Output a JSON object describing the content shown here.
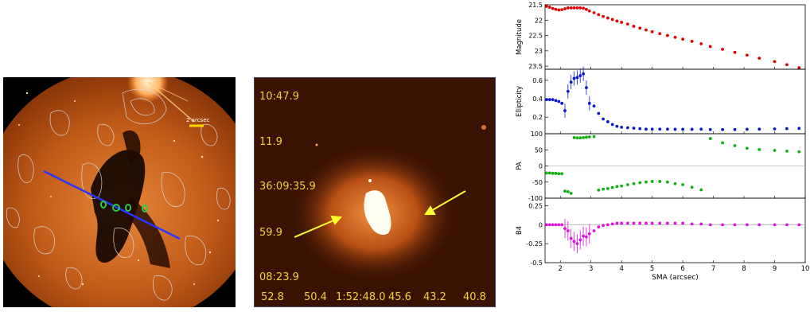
{
  "left_image": {
    "scale_label": "2 arcsec",
    "colors": {
      "contour": "#d8d8d8",
      "axis_line": "#2a36ff",
      "aperture": "#2ecc40",
      "scale_bar": "#ffd400"
    }
  },
  "mid_image": {
    "dec_labels": [
      "10:47.9",
      "11.9",
      "36:09:35.9",
      "59.9",
      "08:23.9"
    ],
    "ra_labels": [
      "52.8",
      "50.4",
      "1:52:48.0",
      "45.6",
      "43.2",
      "40.8"
    ],
    "colors": {
      "label": "#f0d23a",
      "arrow": "#ffff30"
    }
  },
  "chart_data": [
    {
      "type": "scatter",
      "ylabel": "Magnitude",
      "ylim": [
        23.6,
        21.5
      ],
      "yticks": [
        "21.5",
        "22",
        "22.5",
        "23",
        "23.5"
      ],
      "color": "#e00000",
      "x": [
        1.55,
        1.65,
        1.75,
        1.85,
        1.95,
        2.05,
        2.15,
        2.25,
        2.35,
        2.45,
        2.55,
        2.65,
        2.75,
        2.85,
        2.95,
        3.1,
        3.25,
        3.4,
        3.55,
        3.7,
        3.85,
        4.0,
        4.2,
        4.4,
        4.6,
        4.8,
        5.0,
        5.25,
        5.5,
        5.75,
        6.0,
        6.3,
        6.6,
        6.9,
        7.3,
        7.7,
        8.1,
        8.5,
        9.0,
        9.4,
        9.8
      ],
      "y": [
        21.55,
        21.58,
        21.62,
        21.65,
        21.67,
        21.66,
        21.63,
        21.6,
        21.6,
        21.6,
        21.6,
        21.6,
        21.61,
        21.65,
        21.7,
        21.76,
        21.82,
        21.88,
        21.93,
        21.98,
        22.03,
        22.07,
        22.13,
        22.2,
        22.26,
        22.32,
        22.38,
        22.44,
        22.5,
        22.56,
        22.62,
        22.69,
        22.77,
        22.86,
        22.95,
        23.05,
        23.14,
        23.24,
        23.35,
        23.45,
        23.55
      ]
    },
    {
      "type": "scatter",
      "ylabel": "Ellipticity",
      "ylim": [
        0.02,
        0.72
      ],
      "yticks": [
        "0.6",
        "0.4",
        "0.2"
      ],
      "color": "#0a18d0",
      "x": [
        1.55,
        1.65,
        1.75,
        1.85,
        1.95,
        2.05,
        2.15,
        2.25,
        2.35,
        2.45,
        2.55,
        2.65,
        2.75,
        2.85,
        2.95,
        3.1,
        3.25,
        3.4,
        3.55,
        3.7,
        3.85,
        4.0,
        4.2,
        4.4,
        4.6,
        4.8,
        5.0,
        5.25,
        5.5,
        5.75,
        6.0,
        6.3,
        6.6,
        6.9,
        7.3,
        7.7,
        8.1,
        8.5,
        9.0,
        9.4,
        9.8
      ],
      "y": [
        0.39,
        0.39,
        0.39,
        0.38,
        0.37,
        0.35,
        0.27,
        0.48,
        0.58,
        0.62,
        0.63,
        0.65,
        0.67,
        0.52,
        0.35,
        0.32,
        0.24,
        0.18,
        0.15,
        0.12,
        0.1,
        0.09,
        0.085,
        0.08,
        0.075,
        0.07,
        0.07,
        0.07,
        0.07,
        0.068,
        0.068,
        0.068,
        0.07,
        0.065,
        0.065,
        0.065,
        0.068,
        0.07,
        0.072,
        0.075,
        0.078
      ]
    },
    {
      "type": "scatter",
      "ylabel": "PA",
      "ylim": [
        -100,
        100
      ],
      "yticks": [
        "100",
        "50",
        "0",
        "-50",
        "-100"
      ],
      "color": "#10b010",
      "x": [
        1.55,
        1.65,
        1.75,
        1.85,
        1.95,
        2.05,
        2.15,
        2.25,
        2.35,
        2.45,
        2.55,
        2.65,
        2.75,
        2.85,
        2.95,
        3.1,
        3.25,
        3.4,
        3.55,
        3.7,
        3.85,
        4.0,
        4.2,
        4.4,
        4.6,
        4.8,
        5.0,
        5.25,
        5.5,
        5.75,
        6.0,
        6.3,
        6.6,
        6.9,
        7.3,
        7.7,
        8.1,
        8.5,
        9.0,
        9.4,
        9.8
      ],
      "y": [
        -22,
        -22,
        -23,
        -23,
        -24,
        -24,
        -78,
        -80,
        -85,
        88,
        87,
        87,
        88,
        89,
        90,
        91,
        -75,
        -72,
        -70,
        -67,
        -64,
        -62,
        -58,
        -55,
        -52,
        -50,
        -48,
        -48,
        -50,
        -55,
        -58,
        -66,
        -74,
        85,
        72,
        63,
        55,
        51,
        48,
        46,
        44
      ]
    },
    {
      "type": "scatter",
      "ylabel": "B4",
      "xlabel": "SMA (arcsec)",
      "ylim": [
        -0.5,
        0.35
      ],
      "yticks": [
        "0.25",
        "0",
        "-0.25",
        "-0.5"
      ],
      "xticks": [
        "2",
        "3",
        "4",
        "5",
        "6",
        "7",
        "8",
        "9",
        "10"
      ],
      "xlim": [
        1.5,
        10
      ],
      "color": "#e010e0",
      "x": [
        1.55,
        1.65,
        1.75,
        1.85,
        1.95,
        2.05,
        2.15,
        2.25,
        2.35,
        2.45,
        2.55,
        2.65,
        2.75,
        2.85,
        2.95,
        3.1,
        3.25,
        3.4,
        3.55,
        3.7,
        3.85,
        4.0,
        4.2,
        4.4,
        4.6,
        4.8,
        5.0,
        5.25,
        5.5,
        5.75,
        6.0,
        6.3,
        6.6,
        6.9,
        7.3,
        7.7,
        8.1,
        8.5,
        9.0,
        9.4,
        9.8
      ],
      "y": [
        0.0,
        0.0,
        0.0,
        0.0,
        0.0,
        0.0,
        -0.05,
        -0.08,
        -0.18,
        -0.22,
        -0.25,
        -0.2,
        -0.15,
        -0.16,
        -0.12,
        -0.08,
        -0.03,
        -0.01,
        0.0,
        0.01,
        0.02,
        0.02,
        0.02,
        0.02,
        0.02,
        0.02,
        0.02,
        0.02,
        0.02,
        0.02,
        0.02,
        0.01,
        0.01,
        0.0,
        0.0,
        0.0,
        0.0,
        0.0,
        0.0,
        0.0,
        0.0
      ]
    }
  ]
}
